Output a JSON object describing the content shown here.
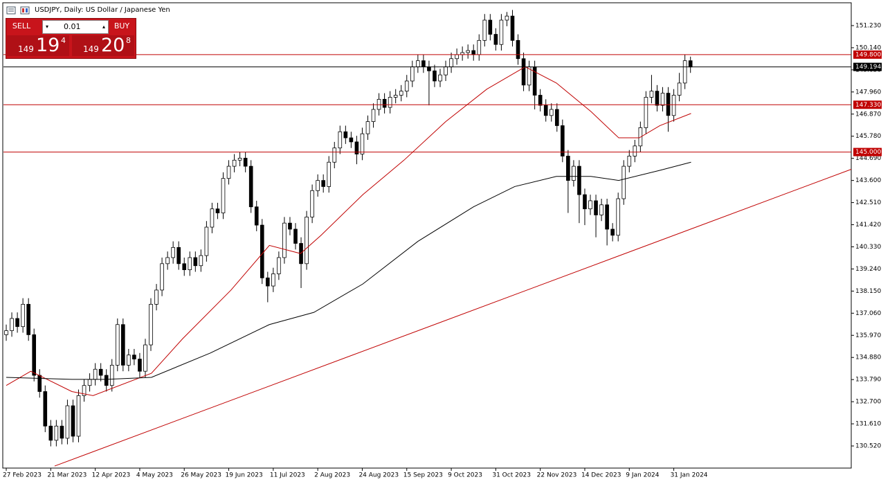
{
  "chart_data": {
    "type": "candlestick",
    "title": "USDJPY, Daily:  US Dollar / Japanese Yen",
    "xlim": [
      -0.5,
      151.9
    ],
    "ylim": [
      129.43,
      152.32
    ],
    "xticks": [
      {
        "value": 0,
        "label": "27 Feb 2023"
      },
      {
        "value": 8,
        "label": "21 Mar 2023"
      },
      {
        "value": 16,
        "label": "12 Apr 2023"
      },
      {
        "value": 24,
        "label": "4 May 2023"
      },
      {
        "value": 32,
        "label": "26 May 2023"
      },
      {
        "value": 40,
        "label": "19 Jun 2023"
      },
      {
        "value": 48,
        "label": "11 Jul 2023"
      },
      {
        "value": 56,
        "label": "2 Aug 2023"
      },
      {
        "value": 64,
        "label": "24 Aug 2023"
      },
      {
        "value": 72,
        "label": "15 Sep 2023"
      },
      {
        "value": 80,
        "label": "9 Oct 2023"
      },
      {
        "value": 88,
        "label": "31 Oct 2023"
      },
      {
        "value": 96,
        "label": "22 Nov 2023"
      },
      {
        "value": 104,
        "label": "14 Dec 2023"
      },
      {
        "value": 112,
        "label": "9 Jan 2024"
      },
      {
        "value": 120,
        "label": "31 Jan 2024"
      }
    ],
    "yticks": [
      {
        "value": 151.23,
        "label": "151.230"
      },
      {
        "value": 150.14,
        "label": "150.140"
      },
      {
        "value": 149.05,
        "label": "149.050"
      },
      {
        "value": 147.96,
        "label": "147.960"
      },
      {
        "value": 146.87,
        "label": "146.870"
      },
      {
        "value": 145.78,
        "label": "145.780"
      },
      {
        "value": 144.69,
        "label": "144.690"
      },
      {
        "value": 143.6,
        "label": "143.600"
      },
      {
        "value": 142.51,
        "label": "142.510"
      },
      {
        "value": 141.42,
        "label": "141.420"
      },
      {
        "value": 140.33,
        "label": "140.330"
      },
      {
        "value": 139.24,
        "label": "139.240"
      },
      {
        "value": 138.15,
        "label": "138.150"
      },
      {
        "value": 137.06,
        "label": "137.060"
      },
      {
        "value": 135.97,
        "label": "135.970"
      },
      {
        "value": 134.88,
        "label": "134.880"
      },
      {
        "value": 133.79,
        "label": "133.790"
      },
      {
        "value": 132.7,
        "label": "132.700"
      },
      {
        "value": 131.61,
        "label": "131.610"
      },
      {
        "value": 130.52,
        "label": "130.520"
      }
    ],
    "candles": [
      [
        136.0,
        136.5,
        135.7,
        136.2
      ],
      [
        136.2,
        137.1,
        135.9,
        136.8
      ],
      [
        136.8,
        137.1,
        136.1,
        136.4
      ],
      [
        136.4,
        137.8,
        136.1,
        137.5
      ],
      [
        137.5,
        137.8,
        135.7,
        136.0
      ],
      [
        136.0,
        136.3,
        133.7,
        134.0
      ],
      [
        134.0,
        134.3,
        132.9,
        133.2
      ],
      [
        133.2,
        133.5,
        131.2,
        131.5
      ],
      [
        131.5,
        131.8,
        130.5,
        130.8
      ],
      [
        130.8,
        131.8,
        130.5,
        131.5
      ],
      [
        131.5,
        131.8,
        130.6,
        130.9
      ],
      [
        130.9,
        132.8,
        130.6,
        132.5
      ],
      [
        132.5,
        132.8,
        130.7,
        131.0
      ],
      [
        131.0,
        133.3,
        130.7,
        133.0
      ],
      [
        133.0,
        133.8,
        132.7,
        133.5
      ],
      [
        133.5,
        134.1,
        133.2,
        133.8
      ],
      [
        133.8,
        134.6,
        133.5,
        134.3
      ],
      [
        134.3,
        134.6,
        133.7,
        134.0
      ],
      [
        134.0,
        134.3,
        133.2,
        133.5
      ],
      [
        133.5,
        134.8,
        133.2,
        134.5
      ],
      [
        134.5,
        136.8,
        134.2,
        136.5
      ],
      [
        136.5,
        136.8,
        134.2,
        134.5
      ],
      [
        134.5,
        135.3,
        134.2,
        135.0
      ],
      [
        135.0,
        135.3,
        134.5,
        134.8
      ],
      [
        134.8,
        135.1,
        133.9,
        134.2
      ],
      [
        134.2,
        135.8,
        133.9,
        135.5
      ],
      [
        135.5,
        137.8,
        135.2,
        137.5
      ],
      [
        137.5,
        138.5,
        137.2,
        138.2
      ],
      [
        138.2,
        139.8,
        137.9,
        139.5
      ],
      [
        139.5,
        140.1,
        139.2,
        139.8
      ],
      [
        139.8,
        140.6,
        139.5,
        140.3
      ],
      [
        140.3,
        140.6,
        139.2,
        139.5
      ],
      [
        139.5,
        139.8,
        138.9,
        139.2
      ],
      [
        139.2,
        140.1,
        138.9,
        139.8
      ],
      [
        139.8,
        140.1,
        139.1,
        139.4
      ],
      [
        139.4,
        140.2,
        139.1,
        139.9
      ],
      [
        139.9,
        141.6,
        139.6,
        141.3
      ],
      [
        141.3,
        142.5,
        141.0,
        142.2
      ],
      [
        142.2,
        142.5,
        141.7,
        142.0
      ],
      [
        142.0,
        144.0,
        141.7,
        143.7
      ],
      [
        143.7,
        144.6,
        143.4,
        144.3
      ],
      [
        144.3,
        144.9,
        144.0,
        144.6
      ],
      [
        144.6,
        145.0,
        144.3,
        144.7
      ],
      [
        144.7,
        145.0,
        144.0,
        144.3
      ],
      [
        144.3,
        144.6,
        142.0,
        142.3
      ],
      [
        142.3,
        142.6,
        141.1,
        141.4
      ],
      [
        141.4,
        141.7,
        138.5,
        138.8
      ],
      [
        138.8,
        139.1,
        137.6,
        138.4
      ],
      [
        138.4,
        139.3,
        138.1,
        139.0
      ],
      [
        139.0,
        140.1,
        138.7,
        139.8
      ],
      [
        139.8,
        141.8,
        139.5,
        141.5
      ],
      [
        141.5,
        141.8,
        140.9,
        141.2
      ],
      [
        141.2,
        141.5,
        140.2,
        140.5
      ],
      [
        140.5,
        140.8,
        138.3,
        139.5
      ],
      [
        139.5,
        142.1,
        139.2,
        141.8
      ],
      [
        141.8,
        143.4,
        141.5,
        143.1
      ],
      [
        143.1,
        143.9,
        142.8,
        143.6
      ],
      [
        143.6,
        143.9,
        143.0,
        143.3
      ],
      [
        143.3,
        144.8,
        143.0,
        144.5
      ],
      [
        144.5,
        145.5,
        144.2,
        145.2
      ],
      [
        145.2,
        146.3,
        144.9,
        146.0
      ],
      [
        146.0,
        146.3,
        145.4,
        145.7
      ],
      [
        145.7,
        146.0,
        145.2,
        145.5
      ],
      [
        145.5,
        145.8,
        144.4,
        144.9
      ],
      [
        144.9,
        146.2,
        144.6,
        145.9
      ],
      [
        145.9,
        146.8,
        145.6,
        146.5
      ],
      [
        146.5,
        147.4,
        146.2,
        147.1
      ],
      [
        147.1,
        147.9,
        146.8,
        147.6
      ],
      [
        147.6,
        147.9,
        146.9,
        147.2
      ],
      [
        147.2,
        148.0,
        146.9,
        147.7
      ],
      [
        147.7,
        148.1,
        147.4,
        147.8
      ],
      [
        147.8,
        148.3,
        147.5,
        148.0
      ],
      [
        148.0,
        148.8,
        147.7,
        148.5
      ],
      [
        148.5,
        149.5,
        148.2,
        149.2
      ],
      [
        149.2,
        149.8,
        148.9,
        149.5
      ],
      [
        149.5,
        149.8,
        148.9,
        149.2
      ],
      [
        149.2,
        149.5,
        147.3,
        149.0
      ],
      [
        149.0,
        149.3,
        148.2,
        148.5
      ],
      [
        148.5,
        149.1,
        148.2,
        148.8
      ],
      [
        148.8,
        149.5,
        148.5,
        149.2
      ],
      [
        149.2,
        149.9,
        148.9,
        149.6
      ],
      [
        149.6,
        150.1,
        149.3,
        149.8
      ],
      [
        149.8,
        150.2,
        149.5,
        149.9
      ],
      [
        149.9,
        150.3,
        149.6,
        150.0
      ],
      [
        150.0,
        150.3,
        149.5,
        149.8
      ],
      [
        149.8,
        150.8,
        149.5,
        150.5
      ],
      [
        150.5,
        151.8,
        150.2,
        151.5
      ],
      [
        151.5,
        151.8,
        150.5,
        150.8
      ],
      [
        150.8,
        151.1,
        150.0,
        150.3
      ],
      [
        150.3,
        151.8,
        150.0,
        151.5
      ],
      [
        151.5,
        151.9,
        151.2,
        151.7
      ],
      [
        151.7,
        152.0,
        150.2,
        150.5
      ],
      [
        150.5,
        150.8,
        149.3,
        149.6
      ],
      [
        149.6,
        149.9,
        148.0,
        148.3
      ],
      [
        148.3,
        149.5,
        148.0,
        149.2
      ],
      [
        149.2,
        149.5,
        147.1,
        147.8
      ],
      [
        147.8,
        148.1,
        147.0,
        147.3
      ],
      [
        147.3,
        147.6,
        146.5,
        146.8
      ],
      [
        146.8,
        147.4,
        146.5,
        147.1
      ],
      [
        147.1,
        147.4,
        146.0,
        146.3
      ],
      [
        146.3,
        146.6,
        144.5,
        144.8
      ],
      [
        144.8,
        145.1,
        142.0,
        143.6
      ],
      [
        143.6,
        144.6,
        143.3,
        144.3
      ],
      [
        144.3,
        144.6,
        141.5,
        142.9
      ],
      [
        142.9,
        143.2,
        141.4,
        142.2
      ],
      [
        142.2,
        142.9,
        141.9,
        142.6
      ],
      [
        142.6,
        142.9,
        140.8,
        141.9
      ],
      [
        141.9,
        142.7,
        141.6,
        142.4
      ],
      [
        142.4,
        142.7,
        140.4,
        141.2
      ],
      [
        141.2,
        141.5,
        140.6,
        140.9
      ],
      [
        140.9,
        143.0,
        140.6,
        142.7
      ],
      [
        142.7,
        144.6,
        142.4,
        144.3
      ],
      [
        144.3,
        145.1,
        144.0,
        144.8
      ],
      [
        144.8,
        145.6,
        144.5,
        145.3
      ],
      [
        145.3,
        146.5,
        145.0,
        146.2
      ],
      [
        146.2,
        148.0,
        145.9,
        147.7
      ],
      [
        147.7,
        148.8,
        147.4,
        148.0
      ],
      [
        148.0,
        148.3,
        147.0,
        147.3
      ],
      [
        147.3,
        148.2,
        147.0,
        147.9
      ],
      [
        147.9,
        148.2,
        146.0,
        146.8
      ],
      [
        146.8,
        148.1,
        146.5,
        147.8
      ],
      [
        147.8,
        148.9,
        147.5,
        148.4
      ],
      [
        148.4,
        149.8,
        148.1,
        149.5
      ],
      [
        149.5,
        149.7,
        148.9,
        149.19
      ]
    ],
    "series": [
      {
        "color": "#c00000",
        "x": [
          0,
          4.4,
          11.8,
          15.6,
          26.1,
          31.7,
          40.4,
          47.3,
          52.9,
          56.6,
          64.1,
          71.5,
          79,
          86.4,
          93.3,
          98.9,
          105.1,
          110.1,
          113.8,
          117.5,
          123.1
        ],
        "values": [
          133.5,
          134.2,
          133.2,
          133.0,
          134.1,
          135.8,
          138.2,
          140.4,
          140.0,
          140.9,
          142.9,
          144.6,
          146.5,
          148.1,
          149.2,
          148.4,
          147.0,
          145.7,
          145.7,
          146.3,
          146.9
        ]
      },
      {
        "color": "#000000",
        "x": [
          0,
          11.8,
          18,
          26.1,
          36.7,
          47.3,
          55.3,
          64.1,
          74,
          84,
          91.4,
          98.9,
          105.1,
          110.1,
          117.5,
          123.1
        ],
        "values": [
          133.9,
          133.8,
          133.8,
          133.9,
          135.1,
          136.5,
          137.1,
          138.5,
          140.6,
          142.3,
          143.3,
          143.8,
          143.8,
          143.6,
          144.1,
          144.5
        ]
      },
      {
        "color": "#c00000",
        "x": [
          8.7,
          151.9
        ],
        "values": [
          129.53,
          144.15
        ]
      }
    ],
    "levels": [
      {
        "value": 149.8,
        "label": "149.800",
        "color": "#c00000"
      },
      {
        "value": 147.33,
        "label": "147.330",
        "color": "#c00000"
      },
      {
        "value": 145.0,
        "label": "145.000",
        "color": "#c00000"
      },
      {
        "value": 149.194,
        "label": "149.194",
        "color": "#000000"
      }
    ]
  },
  "trade_panel": {
    "sell": "SELL",
    "buy": "BUY",
    "lot": "0.01",
    "bid": [
      "149",
      "19",
      "4"
    ],
    "ask": [
      "149",
      "20",
      "8"
    ]
  }
}
